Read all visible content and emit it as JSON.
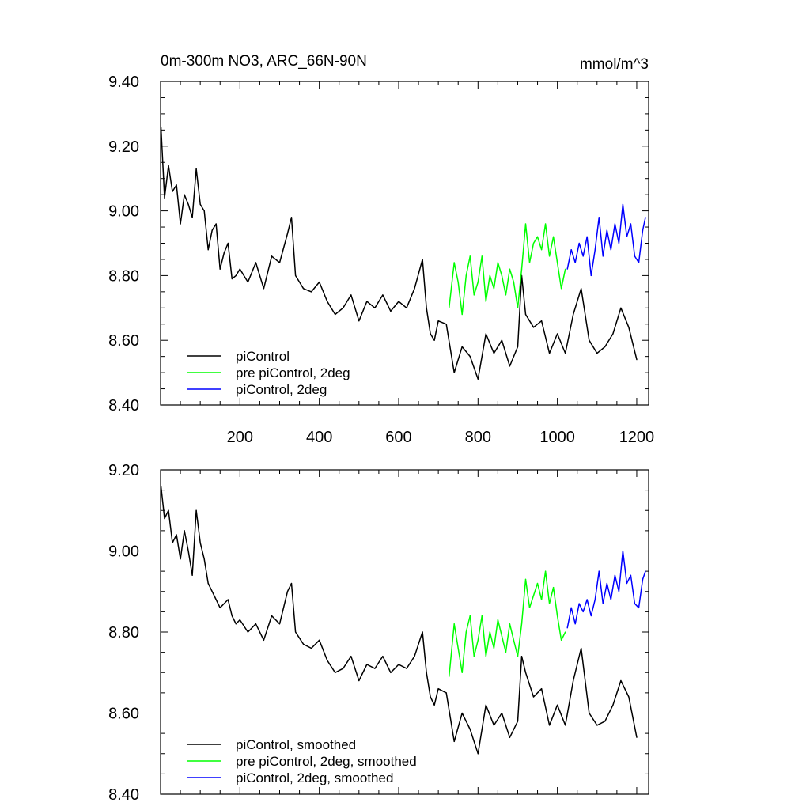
{
  "chart_data": [
    {
      "type": "line",
      "title": "0m-300m NO3, ARC_66N-90N",
      "units": "mmol/m^3",
      "xlim": [
        0,
        1230
      ],
      "ylim": [
        8.4,
        9.4
      ],
      "yticks": [
        "9.40",
        "9.20",
        "9.00",
        "8.80",
        "8.60",
        "8.40"
      ],
      "xticks": [
        "200",
        "400",
        "600",
        "800",
        "1000",
        "1200"
      ],
      "legend_position": "bottom-left",
      "series": [
        {
          "name": "piControl",
          "color": "#000000",
          "x": [
            1,
            10,
            20,
            30,
            40,
            50,
            60,
            70,
            80,
            90,
            100,
            110,
            120,
            130,
            140,
            150,
            160,
            170,
            180,
            190,
            200,
            220,
            240,
            260,
            280,
            300,
            320,
            330,
            340,
            360,
            380,
            400,
            420,
            440,
            460,
            480,
            500,
            520,
            540,
            560,
            580,
            600,
            620,
            640,
            660,
            670,
            680,
            690,
            700,
            720,
            740,
            760,
            780,
            800,
            820,
            840,
            860,
            880,
            900,
            910,
            920,
            940,
            960,
            980,
            1000,
            1020,
            1040,
            1060,
            1080,
            1100,
            1120,
            1140,
            1160,
            1180,
            1200
          ],
          "y": [
            9.26,
            9.04,
            9.14,
            9.06,
            9.08,
            8.96,
            9.05,
            9.02,
            8.98,
            9.13,
            9.02,
            9.0,
            8.88,
            8.94,
            8.96,
            8.82,
            8.87,
            8.9,
            8.79,
            8.8,
            8.82,
            8.78,
            8.84,
            8.76,
            8.86,
            8.84,
            8.93,
            8.98,
            8.8,
            8.76,
            8.75,
            8.78,
            8.72,
            8.68,
            8.7,
            8.74,
            8.66,
            8.72,
            8.7,
            8.74,
            8.69,
            8.72,
            8.7,
            8.76,
            8.85,
            8.7,
            8.62,
            8.6,
            8.66,
            8.65,
            8.5,
            8.58,
            8.55,
            8.48,
            8.62,
            8.56,
            8.6,
            8.52,
            8.58,
            8.8,
            8.68,
            8.64,
            8.66,
            8.56,
            8.62,
            8.56,
            8.68,
            8.76,
            8.6,
            8.56,
            8.58,
            8.62,
            8.7,
            8.64,
            8.54
          ]
        },
        {
          "name": "pre piControl, 2deg",
          "color": "#00ff00",
          "x": [
            727,
            740,
            750,
            760,
            770,
            780,
            790,
            800,
            810,
            820,
            830,
            840,
            850,
            860,
            870,
            880,
            890,
            900,
            910,
            920,
            930,
            940,
            950,
            960,
            970,
            980,
            990,
            1000,
            1010,
            1020
          ],
          "y": [
            8.7,
            8.84,
            8.78,
            8.68,
            8.8,
            8.86,
            8.74,
            8.78,
            8.86,
            8.72,
            8.8,
            8.76,
            8.84,
            8.8,
            8.74,
            8.82,
            8.78,
            8.7,
            8.82,
            8.96,
            8.84,
            8.9,
            8.92,
            8.88,
            8.96,
            8.86,
            8.92,
            8.84,
            8.76,
            8.82
          ]
        },
        {
          "name": "piControl, 2deg",
          "color": "#0000ff",
          "x": [
            1025,
            1035,
            1045,
            1055,
            1065,
            1075,
            1085,
            1095,
            1105,
            1115,
            1125,
            1135,
            1145,
            1155,
            1165,
            1175,
            1185,
            1195,
            1205,
            1215,
            1222
          ],
          "y": [
            8.82,
            8.88,
            8.84,
            8.9,
            8.86,
            8.92,
            8.8,
            8.88,
            8.98,
            8.86,
            8.94,
            8.88,
            8.96,
            8.9,
            9.02,
            8.92,
            8.96,
            8.86,
            8.84,
            8.94,
            8.98
          ]
        }
      ]
    },
    {
      "type": "line",
      "xlim": [
        0,
        1230
      ],
      "ylim": [
        8.4,
        9.2
      ],
      "yticks": [
        "9.20",
        "9.00",
        "8.80",
        "8.60",
        "8.40"
      ],
      "legend_position": "bottom-left",
      "series": [
        {
          "name": "piControl, smoothed",
          "color": "#000000",
          "x": [
            1,
            10,
            20,
            30,
            40,
            50,
            60,
            70,
            80,
            90,
            100,
            110,
            120,
            130,
            140,
            150,
            160,
            170,
            180,
            190,
            200,
            220,
            240,
            260,
            280,
            300,
            320,
            330,
            340,
            360,
            380,
            400,
            420,
            440,
            460,
            480,
            500,
            520,
            540,
            560,
            580,
            600,
            620,
            640,
            660,
            670,
            680,
            690,
            700,
            720,
            740,
            760,
            780,
            800,
            820,
            840,
            860,
            880,
            900,
            910,
            920,
            940,
            960,
            980,
            1000,
            1020,
            1040,
            1060,
            1080,
            1100,
            1120,
            1140,
            1160,
            1180,
            1200
          ],
          "y": [
            9.16,
            9.08,
            9.1,
            9.02,
            9.04,
            8.98,
            9.05,
            9.0,
            8.94,
            9.1,
            9.02,
            8.98,
            8.92,
            8.9,
            8.88,
            8.86,
            8.87,
            8.88,
            8.84,
            8.82,
            8.83,
            8.8,
            8.82,
            8.78,
            8.84,
            8.82,
            8.9,
            8.92,
            8.8,
            8.77,
            8.76,
            8.78,
            8.73,
            8.7,
            8.71,
            8.74,
            8.68,
            8.72,
            8.71,
            8.74,
            8.7,
            8.72,
            8.71,
            8.74,
            8.8,
            8.7,
            8.64,
            8.62,
            8.66,
            8.65,
            8.53,
            8.6,
            8.56,
            8.5,
            8.62,
            8.57,
            8.6,
            8.54,
            8.58,
            8.74,
            8.7,
            8.64,
            8.66,
            8.57,
            8.62,
            8.57,
            8.68,
            8.76,
            8.6,
            8.57,
            8.58,
            8.62,
            8.68,
            8.64,
            8.54
          ]
        },
        {
          "name": "pre piControl, 2deg, smoothed",
          "color": "#00ff00",
          "x": [
            727,
            740,
            750,
            760,
            770,
            780,
            790,
            800,
            810,
            820,
            830,
            840,
            850,
            860,
            870,
            880,
            890,
            900,
            910,
            920,
            930,
            940,
            950,
            960,
            970,
            980,
            990,
            1000,
            1010,
            1020
          ],
          "y": [
            8.69,
            8.82,
            8.76,
            8.7,
            8.8,
            8.84,
            8.74,
            8.78,
            8.84,
            8.74,
            8.8,
            8.76,
            8.83,
            8.79,
            8.75,
            8.82,
            8.78,
            8.74,
            8.82,
            8.93,
            8.86,
            8.89,
            8.92,
            8.88,
            8.95,
            8.87,
            8.91,
            8.84,
            8.78,
            8.8
          ]
        },
        {
          "name": "piControl, 2deg, smoothed",
          "color": "#0000ff",
          "x": [
            1025,
            1035,
            1045,
            1055,
            1065,
            1075,
            1085,
            1095,
            1105,
            1115,
            1125,
            1135,
            1145,
            1155,
            1165,
            1175,
            1185,
            1195,
            1205,
            1215,
            1222
          ],
          "y": [
            8.81,
            8.86,
            8.82,
            8.87,
            8.85,
            8.88,
            8.84,
            8.88,
            8.95,
            8.87,
            8.92,
            8.88,
            8.94,
            8.9,
            9.0,
            8.92,
            8.94,
            8.87,
            8.86,
            8.93,
            8.95
          ]
        }
      ]
    }
  ]
}
